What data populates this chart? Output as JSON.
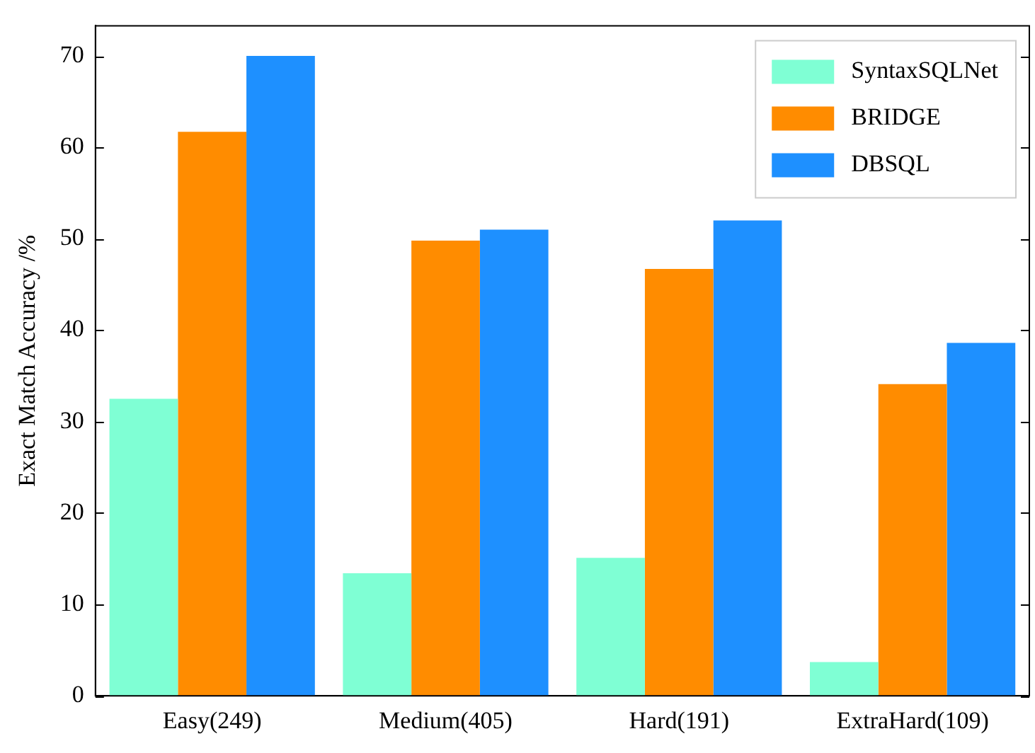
{
  "chart_data": {
    "type": "bar",
    "ylabel": "Exact Match Accuracy /%",
    "categories": [
      "Easy(249)",
      "Medium(405)",
      "Hard(191)",
      "ExtraHard(109)"
    ],
    "series": [
      {
        "name": "SyntaxSQLNet",
        "color": "#7fffd4",
        "values": [
          32.5,
          13.4,
          15.1,
          3.7
        ]
      },
      {
        "name": "BRIDGE",
        "color": "#ff8c00",
        "values": [
          61.7,
          49.8,
          46.7,
          34.1
        ]
      },
      {
        "name": "DBSQL",
        "color": "#1e90ff",
        "values": [
          70.0,
          51.0,
          52.0,
          38.6
        ]
      }
    ],
    "ylim": [
      0,
      73.3
    ],
    "yticks": [
      0,
      10,
      20,
      30,
      40,
      50,
      60,
      70
    ],
    "grid": false,
    "legend": "top right"
  }
}
